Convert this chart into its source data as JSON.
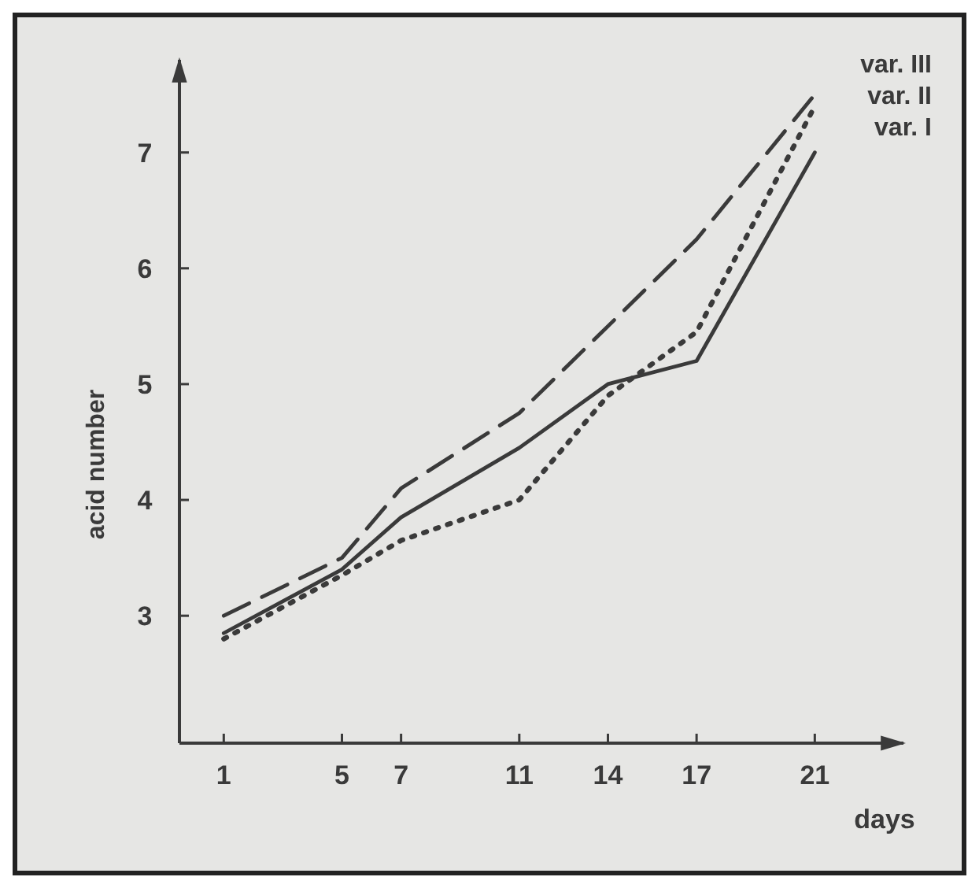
{
  "chart_data": {
    "type": "line",
    "xlabel": "days",
    "ylabel": "acid number",
    "x": [
      1,
      5,
      7,
      11,
      14,
      17,
      21
    ],
    "series": [
      {
        "name": "var. III",
        "color": "#3a3a3a",
        "values": [
          3.0,
          3.5,
          4.1,
          4.75,
          5.5,
          6.25,
          7.5
        ],
        "line_style": "dashed"
      },
      {
        "name": "var. II",
        "color": "#3a3a3a",
        "values": [
          2.8,
          3.35,
          3.65,
          4.0,
          4.9,
          5.45,
          7.4
        ],
        "line_style": "dotted"
      },
      {
        "name": "var. I",
        "color": "#3a3a3a",
        "values": [
          2.85,
          3.4,
          3.85,
          4.45,
          5.0,
          5.2,
          7.0
        ],
        "line_style": "solid"
      }
    ],
    "xlim": [
      -0.5,
      24
    ],
    "ylim": [
      1.9,
      7.8
    ],
    "xticks": [
      1,
      5,
      7,
      11,
      14,
      17,
      21
    ],
    "yticks": [
      3,
      4,
      5,
      6,
      7
    ],
    "legend": "top right",
    "grid": false
  }
}
